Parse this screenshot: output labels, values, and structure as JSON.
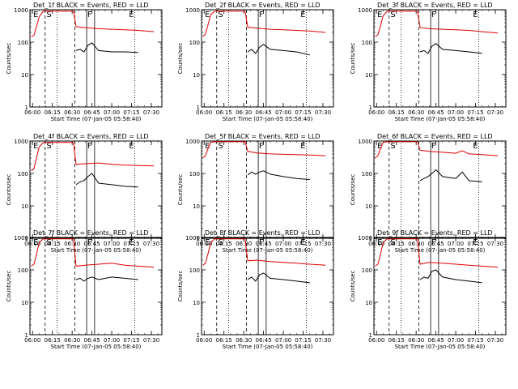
{
  "chart_data": [
    {
      "type": "line",
      "title": "Det_1f BLACK = Events, RED = LLD",
      "xlabel": "Start Time (07-Jan-05 05:58:40)",
      "ylabel": "Counts/sec",
      "yscale": "log",
      "ylim": [
        1,
        1000
      ],
      "x_ticks": [
        "06:00",
        "06:15",
        "06:30",
        "06:45",
        "07:00",
        "07:15",
        "07:30"
      ],
      "y_ticks": [
        "1",
        "10",
        "100",
        "1000"
      ],
      "markers": [
        "E",
        "S",
        "F",
        "E"
      ],
      "series": [
        {
          "color": "#e00000",
          "x": [
            "05:59",
            "06:01",
            "06:03",
            "06:05",
            "06:08",
            "06:31",
            "06:33",
            "06:40",
            "06:50",
            "07:00",
            "07:10",
            "07:20",
            "07:32"
          ],
          "y": [
            150,
            160,
            300,
            600,
            900,
            900,
            300,
            280,
            260,
            250,
            240,
            230,
            210
          ]
        },
        {
          "color": "#000000",
          "x": [
            "06:33",
            "06:36",
            "06:39",
            "06:42",
            "06:45",
            "06:50",
            "07:00",
            "07:10",
            "07:20"
          ],
          "y": [
            55,
            60,
            50,
            80,
            95,
            55,
            50,
            50,
            48
          ]
        }
      ]
    },
    {
      "type": "line",
      "title": "Det_2f BLACK = Events, RED = LLD",
      "xlabel": "Start Time (07-Jan-05 05:58:40)",
      "ylabel": "Counts/sec",
      "yscale": "log",
      "ylim": [
        1,
        1000
      ],
      "x_ticks": [
        "06:00",
        "06:15",
        "06:30",
        "06:45",
        "07:00",
        "07:15",
        "07:30"
      ],
      "y_ticks": [
        "1",
        "10",
        "100",
        "1000"
      ],
      "markers": [
        "E",
        "S",
        "F",
        "E"
      ],
      "series": [
        {
          "color": "#e00000",
          "x": [
            "05:59",
            "06:01",
            "06:03",
            "06:05",
            "06:08",
            "06:31",
            "06:33",
            "06:40",
            "06:50",
            "07:00",
            "07:10",
            "07:20",
            "07:32"
          ],
          "y": [
            150,
            180,
            350,
            700,
            900,
            900,
            290,
            270,
            250,
            240,
            230,
            220,
            200
          ]
        },
        {
          "color": "#000000",
          "x": [
            "06:33",
            "06:36",
            "06:39",
            "06:42",
            "06:45",
            "06:50",
            "07:00",
            "07:10",
            "07:20"
          ],
          "y": [
            50,
            60,
            45,
            70,
            85,
            60,
            55,
            50,
            40
          ]
        }
      ]
    },
    {
      "type": "line",
      "title": "Det_3f BLACK = Events, RED = LLD",
      "xlabel": "Start Time (07-Jan-05 05:58:40)",
      "ylabel": "Counts/sec",
      "yscale": "log",
      "ylim": [
        1,
        1000
      ],
      "x_ticks": [
        "06:00",
        "06:15",
        "06:30",
        "06:45",
        "07:00",
        "07:15",
        "07:30"
      ],
      "y_ticks": [
        "1",
        "10",
        "100",
        "1000"
      ],
      "markers": [
        "E",
        "S",
        "F",
        "E"
      ],
      "series": [
        {
          "color": "#e00000",
          "x": [
            "05:59",
            "06:01",
            "06:03",
            "06:05",
            "06:08",
            "06:31",
            "06:33",
            "06:40",
            "06:50",
            "07:00",
            "07:10",
            "07:20",
            "07:32"
          ],
          "y": [
            150,
            170,
            320,
            650,
            900,
            900,
            280,
            260,
            250,
            240,
            230,
            210,
            190
          ]
        },
        {
          "color": "#000000",
          "x": [
            "06:33",
            "06:36",
            "06:39",
            "06:42",
            "06:45",
            "06:50",
            "07:00",
            "07:10",
            "07:20"
          ],
          "y": [
            50,
            55,
            45,
            75,
            90,
            60,
            55,
            50,
            45
          ]
        }
      ]
    },
    {
      "type": "line",
      "title": "Det_4f BLACK = Events, RED = LLD",
      "xlabel": "Start Time (07-Jan-05 05:58:40)",
      "ylabel": "Counts/sec",
      "yscale": "log",
      "ylim": [
        1,
        1000
      ],
      "x_ticks": [
        "06:00",
        "06:15",
        "06:30",
        "06:45",
        "07:00",
        "07:15",
        "07:30"
      ],
      "y_ticks": [
        "1",
        "10",
        "100",
        "1000"
      ],
      "markers": [
        "E",
        "S",
        "F",
        "E"
      ],
      "series": [
        {
          "color": "#e00000",
          "x": [
            "05:59",
            "06:01",
            "06:03",
            "06:05",
            "06:08",
            "06:31",
            "06:33",
            "06:40",
            "06:50",
            "07:00",
            "07:10",
            "07:20",
            "07:32"
          ],
          "y": [
            120,
            140,
            300,
            650,
            900,
            900,
            190,
            200,
            210,
            190,
            180,
            175,
            170
          ]
        },
        {
          "color": "#000000",
          "x": [
            "06:33",
            "06:36",
            "06:39",
            "06:42",
            "06:45",
            "06:50",
            "07:00",
            "07:10",
            "07:20"
          ],
          "y": [
            45,
            55,
            60,
            80,
            100,
            50,
            45,
            40,
            38
          ]
        }
      ]
    },
    {
      "type": "line",
      "title": "Det_5f BLACK = Events, RED = LLD",
      "xlabel": "Start Time (07-Jan-05 05:58:40)",
      "ylabel": "Counts/sec",
      "yscale": "log",
      "ylim": [
        1,
        1000
      ],
      "x_ticks": [
        "06:00",
        "06:15",
        "06:30",
        "06:45",
        "07:00",
        "07:15",
        "07:30"
      ],
      "y_ticks": [
        "1",
        "10",
        "100",
        "1000"
      ],
      "markers": [
        "E",
        "S",
        "F",
        "E"
      ],
      "series": [
        {
          "color": "#e00000",
          "x": [
            "05:59",
            "06:01",
            "06:03",
            "06:05",
            "06:08",
            "06:31",
            "06:33",
            "06:40",
            "06:50",
            "07:00",
            "07:10",
            "07:20",
            "07:32"
          ],
          "y": [
            300,
            350,
            600,
            900,
            950,
            950,
            480,
            430,
            400,
            390,
            380,
            370,
            350
          ]
        },
        {
          "color": "#000000",
          "x": [
            "06:33",
            "06:36",
            "06:39",
            "06:42",
            "06:45",
            "06:50",
            "07:00",
            "07:10",
            "07:20"
          ],
          "y": [
            90,
            110,
            95,
            110,
            120,
            95,
            80,
            70,
            65
          ]
        }
      ]
    },
    {
      "type": "line",
      "title": "Det_6f BLACK = Events, RED = LLD",
      "xlabel": "Start Time (07-Jan-05 05:58:40)",
      "ylabel": "Counts/sec",
      "yscale": "log",
      "ylim": [
        1,
        1000
      ],
      "x_ticks": [
        "06:00",
        "06:15",
        "06:30",
        "06:45",
        "07:00",
        "07:15",
        "07:30"
      ],
      "y_ticks": [
        "1",
        "10",
        "100",
        "1000"
      ],
      "markers": [
        "E",
        "S",
        "F",
        "E"
      ],
      "series": [
        {
          "color": "#e00000",
          "x": [
            "05:59",
            "06:01",
            "06:03",
            "06:05",
            "06:08",
            "06:31",
            "06:33",
            "06:40",
            "06:50",
            "07:00",
            "07:05",
            "07:10",
            "07:20",
            "07:32"
          ],
          "y": [
            300,
            350,
            600,
            900,
            950,
            950,
            520,
            480,
            450,
            420,
            500,
            400,
            380,
            350
          ]
        },
        {
          "color": "#000000",
          "x": [
            "06:33",
            "06:36",
            "06:39",
            "06:42",
            "06:45",
            "06:50",
            "07:00",
            "07:05",
            "07:10",
            "07:20"
          ],
          "y": [
            60,
            70,
            80,
            100,
            130,
            80,
            70,
            110,
            60,
            55
          ]
        }
      ]
    },
    {
      "type": "line",
      "title": "Det_7f BLACK = Events, RED = LLD",
      "xlabel": "Start Time (07-Jan-05 05:58:40)",
      "ylabel": "Counts/sec",
      "yscale": "log",
      "ylim": [
        1,
        1000
      ],
      "x_ticks": [
        "06:00",
        "06:15",
        "06:30",
        "06:45",
        "07:00",
        "07:15",
        "07:30"
      ],
      "y_ticks": [
        "1",
        "10",
        "100",
        "1000"
      ],
      "markers": [
        "E",
        "S",
        "F",
        "E"
      ],
      "series": [
        {
          "color": "#e00000",
          "x": [
            "05:59",
            "06:01",
            "06:03",
            "06:05",
            "06:08",
            "06:31",
            "06:33",
            "06:40",
            "06:50",
            "07:00",
            "07:10",
            "07:20",
            "07:32"
          ],
          "y": [
            130,
            150,
            300,
            700,
            900,
            900,
            130,
            140,
            150,
            160,
            140,
            130,
            120
          ]
        },
        {
          "color": "#000000",
          "x": [
            "06:33",
            "06:36",
            "06:39",
            "06:42",
            "06:45",
            "06:50",
            "07:00",
            "07:10",
            "07:20"
          ],
          "y": [
            50,
            55,
            45,
            55,
            60,
            50,
            60,
            55,
            50
          ]
        }
      ]
    },
    {
      "type": "line",
      "title": "Det_8f BLACK = Events, RED = LLD",
      "xlabel": "Start Time (07-Jan-05 05:58:40)",
      "ylabel": "Counts/sec",
      "yscale": "log",
      "ylim": [
        1,
        1000
      ],
      "x_ticks": [
        "06:00",
        "06:15",
        "06:30",
        "06:45",
        "07:00",
        "07:15",
        "07:30"
      ],
      "y_ticks": [
        "1",
        "10",
        "100",
        "1000"
      ],
      "markers": [
        "E",
        "S",
        "F",
        "E"
      ],
      "series": [
        {
          "color": "#e00000",
          "x": [
            "05:59",
            "06:01",
            "06:03",
            "06:05",
            "06:08",
            "06:31",
            "06:33",
            "06:40",
            "06:50",
            "07:00",
            "07:10",
            "07:20",
            "07:32"
          ],
          "y": [
            140,
            160,
            320,
            700,
            900,
            900,
            190,
            200,
            180,
            170,
            160,
            150,
            140
          ]
        },
        {
          "color": "#000000",
          "x": [
            "06:33",
            "06:36",
            "06:39",
            "06:42",
            "06:45",
            "06:50",
            "07:00",
            "07:10",
            "07:20"
          ],
          "y": [
            50,
            60,
            45,
            70,
            80,
            55,
            50,
            45,
            40
          ]
        }
      ]
    },
    {
      "type": "line",
      "title": "Det_9f BLACK = Events, RED = LLD",
      "xlabel": "Start Time (07-Jan-05 05:58:40)",
      "ylabel": "Counts/sec",
      "yscale": "log",
      "ylim": [
        1,
        1000
      ],
      "x_ticks": [
        "06:00",
        "06:15",
        "06:30",
        "06:45",
        "07:00",
        "07:15",
        "07:30"
      ],
      "y_ticks": [
        "1",
        "10",
        "100",
        "1000"
      ],
      "markers": [
        "E",
        "S",
        "F",
        "E"
      ],
      "series": [
        {
          "color": "#e00000",
          "x": [
            "05:59",
            "06:01",
            "06:03",
            "06:05",
            "06:08",
            "06:31",
            "06:33",
            "06:40",
            "06:50",
            "07:00",
            "07:10",
            "07:20",
            "07:32"
          ],
          "y": [
            130,
            150,
            300,
            700,
            900,
            900,
            150,
            170,
            160,
            150,
            140,
            130,
            120
          ]
        },
        {
          "color": "#000000",
          "x": [
            "06:33",
            "06:36",
            "06:39",
            "06:42",
            "06:45",
            "06:50",
            "07:00",
            "07:10",
            "07:20"
          ],
          "y": [
            50,
            60,
            55,
            90,
            100,
            60,
            50,
            45,
            40
          ]
        }
      ]
    }
  ]
}
